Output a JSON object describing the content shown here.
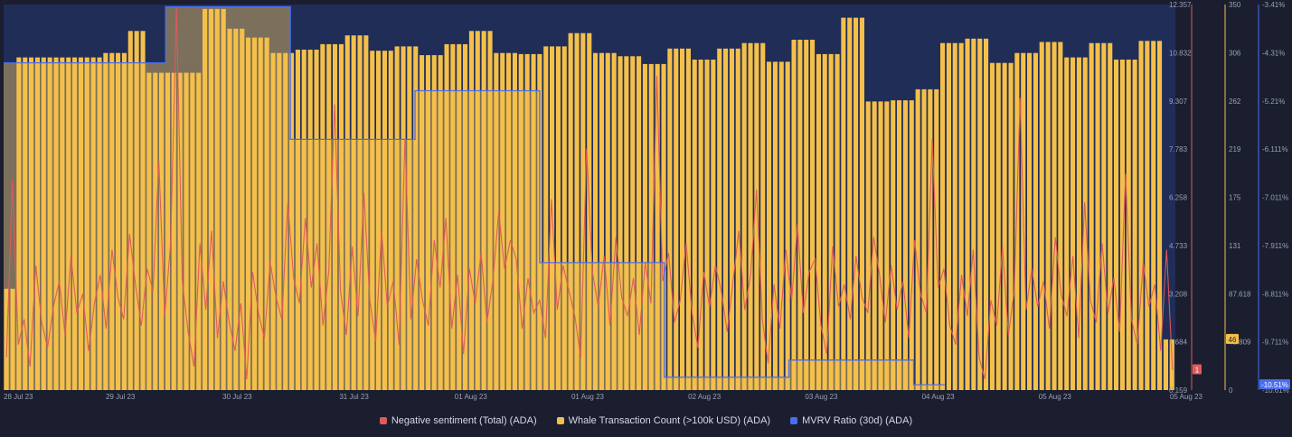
{
  "chart_data": {
    "type": "bar",
    "x_tick_labels": [
      "28 Jul 23",
      "29 Jul 23",
      "30 Jul 23",
      "31 Jul 23",
      "01 Aug 23",
      "01 Aug 23",
      "02 Aug 23",
      "03 Aug 23",
      "04 Aug 23",
      "05 Aug 23",
      "05 Aug 23"
    ],
    "axes": {
      "sentiment": {
        "ticks": [
          "0.159",
          "1.684",
          "3.208",
          "4.733",
          "6.258",
          "7.783",
          "9.307",
          "10.832",
          "12.357"
        ],
        "ylim": [
          0.159,
          12.357
        ],
        "current_value": "1",
        "color": "#e05a5a"
      },
      "whale": {
        "ticks": [
          "0",
          "43.809",
          "87.618",
          "131",
          "175",
          "219",
          "262",
          "306",
          "350"
        ],
        "ylim": [
          0,
          350
        ],
        "current_value": "46",
        "color": "#f4c04a"
      },
      "mvrv": {
        "ticks": [
          "-10.61%",
          "-9.711%",
          "-8.811%",
          "-7.911%",
          "-7.011%",
          "-6.111%",
          "-5.21%",
          "-4.31%",
          "-3.41%"
        ],
        "ylim": [
          -10.61,
          -3.41
        ],
        "current_value": "-10.51%",
        "color": "#4a6ef0"
      }
    },
    "series": [
      {
        "name": "Negative sentiment (Total) (ADA)",
        "color": "#e05a5a",
        "values": [
          1.2,
          6.8,
          1.6,
          2.4,
          0.9,
          4.1,
          2.3,
          1.5,
          2.8,
          3.6,
          1.9,
          4.4,
          2.6,
          3.2,
          1.4,
          2.9,
          3.8,
          2.1,
          4.6,
          3.1,
          2.4,
          5.1,
          3.5,
          2.2,
          4.0,
          3.3,
          7.4,
          2.5,
          4.8,
          12.3,
          3.6,
          2.0,
          0.9,
          4.8,
          2.7,
          5.2,
          1.8,
          3.6,
          2.3,
          1.4,
          2.9,
          0.5,
          3.9,
          2.6,
          1.8,
          4.2,
          3.1,
          2.4,
          6.1,
          3.7,
          2.9,
          5.6,
          3.4,
          4.8,
          2.2,
          3.9,
          9.2,
          3.3,
          1.9,
          4.7,
          2.5,
          6.4,
          3.0,
          1.7,
          5.2,
          2.8,
          3.6,
          1.6,
          8.1,
          2.4,
          4.3,
          3.0,
          2.2,
          4.9,
          3.4,
          5.6,
          2.1,
          3.8,
          1.3,
          4.0,
          2.9,
          4.5,
          2.3,
          3.6,
          5.8,
          4.0,
          4.9,
          4.3,
          2.1,
          3.7,
          2.6,
          3.0,
          1.8,
          6.2,
          2.7,
          4.1,
          3.3,
          2.5,
          1.2,
          7.8,
          3.9,
          2.8,
          4.4,
          2.2,
          5.0,
          3.1,
          2.5,
          3.7,
          1.9,
          4.2,
          2.9,
          10.1,
          3.6,
          4.5,
          2.3,
          3.0,
          4.8,
          2.6,
          1.5,
          3.9,
          2.8,
          4.1,
          3.3,
          2.0,
          3.6,
          5.2,
          2.7,
          3.8,
          6.5,
          2.4,
          1.0,
          3.5,
          2.1,
          4.6,
          3.0,
          5.4,
          2.6,
          3.9,
          4.3,
          2.2,
          1.3,
          4.7,
          2.8,
          3.5,
          2.4,
          4.4,
          3.1,
          2.6,
          5.0,
          3.8,
          2.3,
          4.1,
          2.7,
          3.6,
          1.8,
          4.9,
          3.2,
          2.6,
          8.1,
          3.4,
          4.0,
          2.2,
          1.6,
          3.8,
          2.5,
          4.6,
          1.2,
          0.5,
          3.0,
          2.2,
          4.7,
          1.9,
          3.3,
          9.4,
          2.7,
          4.0,
          2.8,
          3.6,
          2.1,
          5.0,
          3.2,
          2.5,
          4.4,
          1.8,
          6.1,
          3.0,
          2.3,
          4.8,
          2.6,
          3.7,
          2.0,
          7.0,
          2.4,
          1.6,
          4.2,
          2.8,
          3.5,
          1.4,
          4.6,
          0.8
        ]
      },
      {
        "name": "Whale Transaction Count (>100k USD) (ADA)",
        "color": "#f4c04a",
        "values": [
          92,
          92,
          302,
          302,
          302,
          302,
          302,
          302,
          302,
          302,
          302,
          302,
          302,
          302,
          302,
          302,
          306,
          306,
          306,
          306,
          326,
          326,
          326,
          288,
          288,
          288,
          288,
          288,
          288,
          288,
          288,
          288,
          346,
          346,
          346,
          346,
          328,
          328,
          328,
          320,
          320,
          320,
          320,
          306,
          306,
          306,
          306,
          309,
          309,
          309,
          309,
          314,
          314,
          314,
          314,
          322,
          322,
          322,
          322,
          308,
          308,
          308,
          308,
          312,
          312,
          312,
          312,
          304,
          304,
          304,
          304,
          314,
          314,
          314,
          314,
          326,
          326,
          326,
          326,
          306,
          306,
          306,
          306,
          305,
          305,
          305,
          305,
          312,
          312,
          312,
          312,
          324,
          324,
          324,
          324,
          306,
          306,
          306,
          306,
          303,
          303,
          303,
          303,
          296,
          296,
          296,
          296,
          310,
          310,
          310,
          310,
          300,
          300,
          300,
          300,
          310,
          310,
          310,
          310,
          315,
          315,
          315,
          315,
          298,
          298,
          298,
          298,
          318,
          318,
          318,
          318,
          305,
          305,
          305,
          305,
          338,
          338,
          338,
          338,
          262,
          262,
          262,
          262,
          263,
          263,
          263,
          263,
          273,
          273,
          273,
          273,
          315,
          315,
          315,
          315,
          319,
          319,
          319,
          319,
          297,
          297,
          297,
          297,
          306,
          306,
          306,
          306,
          316,
          316,
          316,
          316,
          302,
          302,
          302,
          302,
          315,
          315,
          315,
          315,
          300,
          300,
          300,
          300,
          317,
          317,
          317,
          317,
          46,
          46
        ]
      },
      {
        "name": "MVRV Ratio (30d) (ADA)",
        "color": "#4a6ef0",
        "points": [
          [
            0,
            -4.5
          ],
          [
            26,
            -4.5
          ],
          [
            26,
            -3.45
          ],
          [
            46,
            -3.45
          ],
          [
            46,
            -5.93
          ],
          [
            66,
            -5.93
          ],
          [
            66,
            -5.02
          ],
          [
            86,
            -5.02
          ],
          [
            86,
            -8.23
          ],
          [
            106,
            -8.23
          ],
          [
            106,
            -10.37
          ],
          [
            126,
            -10.37
          ],
          [
            126,
            -10.05
          ],
          [
            146,
            -10.05
          ],
          [
            146,
            -10.51
          ],
          [
            151,
            -10.51
          ]
        ]
      }
    ],
    "grid": false,
    "legend_position": "bottom-center"
  },
  "legend": {
    "items": [
      {
        "label": "Negative sentiment (Total) (ADA)",
        "color": "#e05a5a"
      },
      {
        "label": "Whale Transaction Count (>100k USD) (ADA)",
        "color": "#f4c04a"
      },
      {
        "label": "MVRV Ratio (30d) (ADA)",
        "color": "#4a6ef0"
      }
    ]
  }
}
